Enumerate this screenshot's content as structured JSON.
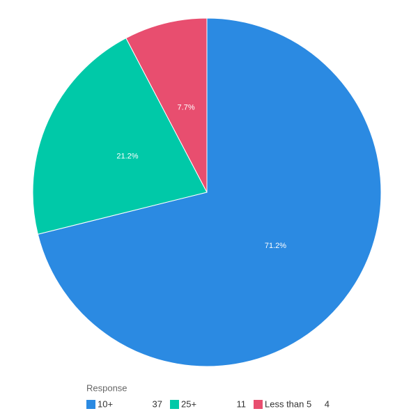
{
  "chart_data": {
    "type": "pie",
    "categories": [
      "10+",
      "25+",
      "Less than 5"
    ],
    "values": [
      71.2,
      21.2,
      7.7
    ],
    "value_labels": [
      "71.2%",
      "21.2%",
      "7.7%"
    ],
    "colors": [
      "#2b8ae2",
      "#00c9a8",
      "#e84e6f"
    ],
    "legend_title": "Response",
    "counts": [
      37,
      11,
      4
    ]
  }
}
